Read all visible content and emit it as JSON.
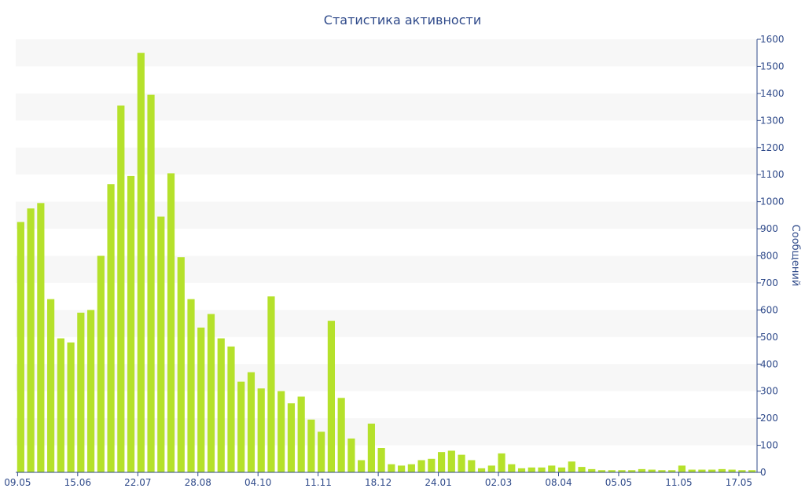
{
  "chart_data": {
    "type": "bar",
    "title": "Статистика активности",
    "xlabel": "",
    "ylabel": "Сообщений",
    "ylim": [
      0,
      1600
    ],
    "yticks": [
      0,
      100,
      200,
      300,
      400,
      500,
      600,
      700,
      800,
      900,
      1000,
      1100,
      1200,
      1300,
      1400,
      1500,
      1600
    ],
    "y_axis_side": "right",
    "grid": "alternating horizontal bands",
    "bar_color": "#b5e12b",
    "text_color": "#2f4a8a",
    "band_color": "#f7f7f7",
    "xticks": [
      {
        "label": "09.05",
        "index": 0
      },
      {
        "label": "15.06",
        "index": 6
      },
      {
        "label": "22.07",
        "index": 12
      },
      {
        "label": "28.08",
        "index": 18
      },
      {
        "label": "04.10",
        "index": 24
      },
      {
        "label": "11.11",
        "index": 30
      },
      {
        "label": "18.12",
        "index": 36
      },
      {
        "label": "24.01",
        "index": 42
      },
      {
        "label": "02.03",
        "index": 48
      },
      {
        "label": "08.04",
        "index": 54
      },
      {
        "label": "05.05",
        "index": 60
      },
      {
        "label": "11.05",
        "index": 66
      },
      {
        "label": "17.05",
        "index": 72
      }
    ],
    "values": [
      925,
      975,
      995,
      640,
      495,
      480,
      590,
      600,
      800,
      1065,
      1355,
      1095,
      1550,
      1395,
      945,
      1105,
      795,
      640,
      535,
      585,
      495,
      465,
      335,
      370,
      310,
      650,
      300,
      255,
      280,
      195,
      150,
      560,
      275,
      125,
      45,
      180,
      90,
      30,
      25,
      30,
      45,
      50,
      75,
      80,
      65,
      45,
      15,
      25,
      70,
      30,
      15,
      18,
      18,
      25,
      18,
      40,
      20,
      12,
      8,
      8,
      8,
      8,
      12,
      10,
      8,
      8,
      25,
      10,
      10,
      10,
      12,
      10,
      8,
      8
    ]
  }
}
